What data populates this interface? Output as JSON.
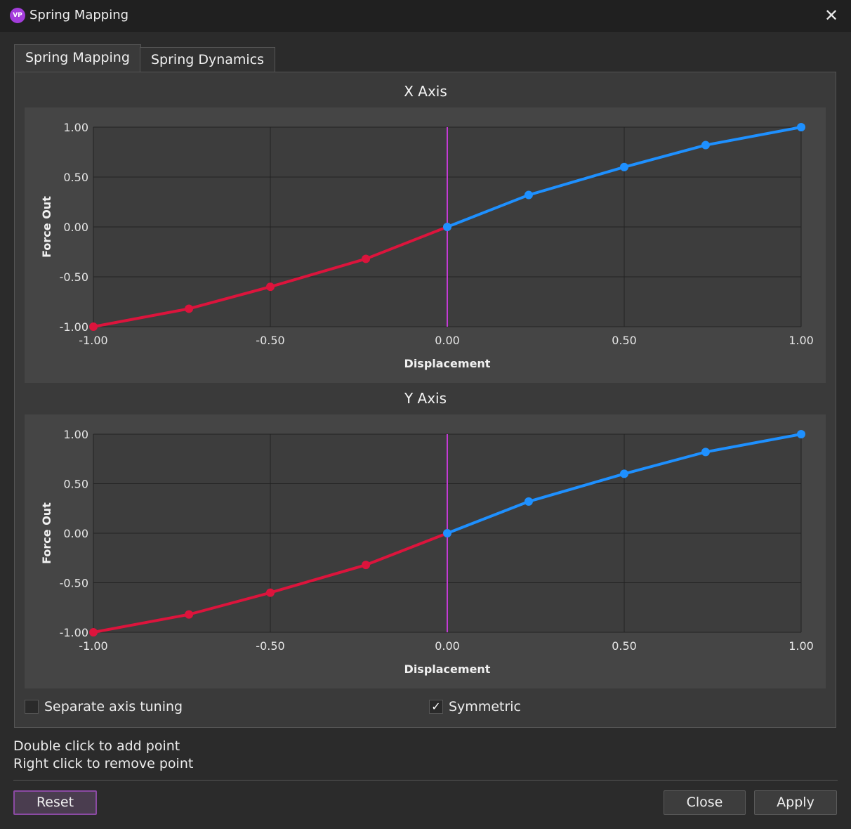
{
  "window": {
    "title": "Spring Mapping",
    "icon": "app-logo-icon",
    "icon_text": "VP"
  },
  "tabs": [
    {
      "label": "Spring Mapping",
      "active": true
    },
    {
      "label": "Spring Dynamics",
      "active": false
    }
  ],
  "colors": {
    "negative_curve": "#dc143c",
    "positive_curve": "#1e90ff",
    "center_line": "#c43ad6",
    "grid": "#222222",
    "plot_bg": "#3d3d3d",
    "accent": "#8b4aa3"
  },
  "chart_data": [
    {
      "type": "line",
      "title": "X Axis",
      "xlabel": "Displacement",
      "ylabel": "Force Out",
      "xlim": [
        -1,
        1
      ],
      "ylim": [
        -1,
        1
      ],
      "xticks": [
        "-1.00",
        "-0.50",
        "0.00",
        "0.50",
        "1.00"
      ],
      "yticks": [
        "1.00",
        "0.50",
        "0.00",
        "-0.50",
        "-1.00"
      ],
      "grid": true,
      "series": [
        {
          "name": "negative",
          "x": [
            -1.0,
            -0.73,
            -0.5,
            -0.23,
            0.0
          ],
          "y": [
            -1.0,
            -0.82,
            -0.6,
            -0.32,
            0.0
          ]
        },
        {
          "name": "positive",
          "x": [
            0.0,
            0.23,
            0.5,
            0.73,
            1.0
          ],
          "y": [
            0.0,
            0.32,
            0.6,
            0.82,
            1.0
          ]
        }
      ]
    },
    {
      "type": "line",
      "title": "Y Axis",
      "xlabel": "Displacement",
      "ylabel": "Force Out",
      "xlim": [
        -1,
        1
      ],
      "ylim": [
        -1,
        1
      ],
      "xticks": [
        "-1.00",
        "-0.50",
        "0.00",
        "0.50",
        "1.00"
      ],
      "yticks": [
        "1.00",
        "0.50",
        "0.00",
        "-0.50",
        "-1.00"
      ],
      "grid": true,
      "series": [
        {
          "name": "negative",
          "x": [
            -1.0,
            -0.73,
            -0.5,
            -0.23,
            0.0
          ],
          "y": [
            -1.0,
            -0.82,
            -0.6,
            -0.32,
            0.0
          ]
        },
        {
          "name": "positive",
          "x": [
            0.0,
            0.23,
            0.5,
            0.73,
            1.0
          ],
          "y": [
            0.0,
            0.32,
            0.6,
            0.82,
            1.0
          ]
        }
      ]
    }
  ],
  "options": {
    "separate_axis_tuning": {
      "label": "Separate axis tuning",
      "checked": false
    },
    "symmetric": {
      "label": "Symmetric",
      "checked": true,
      "check_glyph": "✓"
    }
  },
  "hints": [
    "Double click to add point",
    "Right click to remove point"
  ],
  "buttons": {
    "reset": "Reset",
    "close": "Close",
    "apply": "Apply"
  },
  "close_glyph": "✕"
}
